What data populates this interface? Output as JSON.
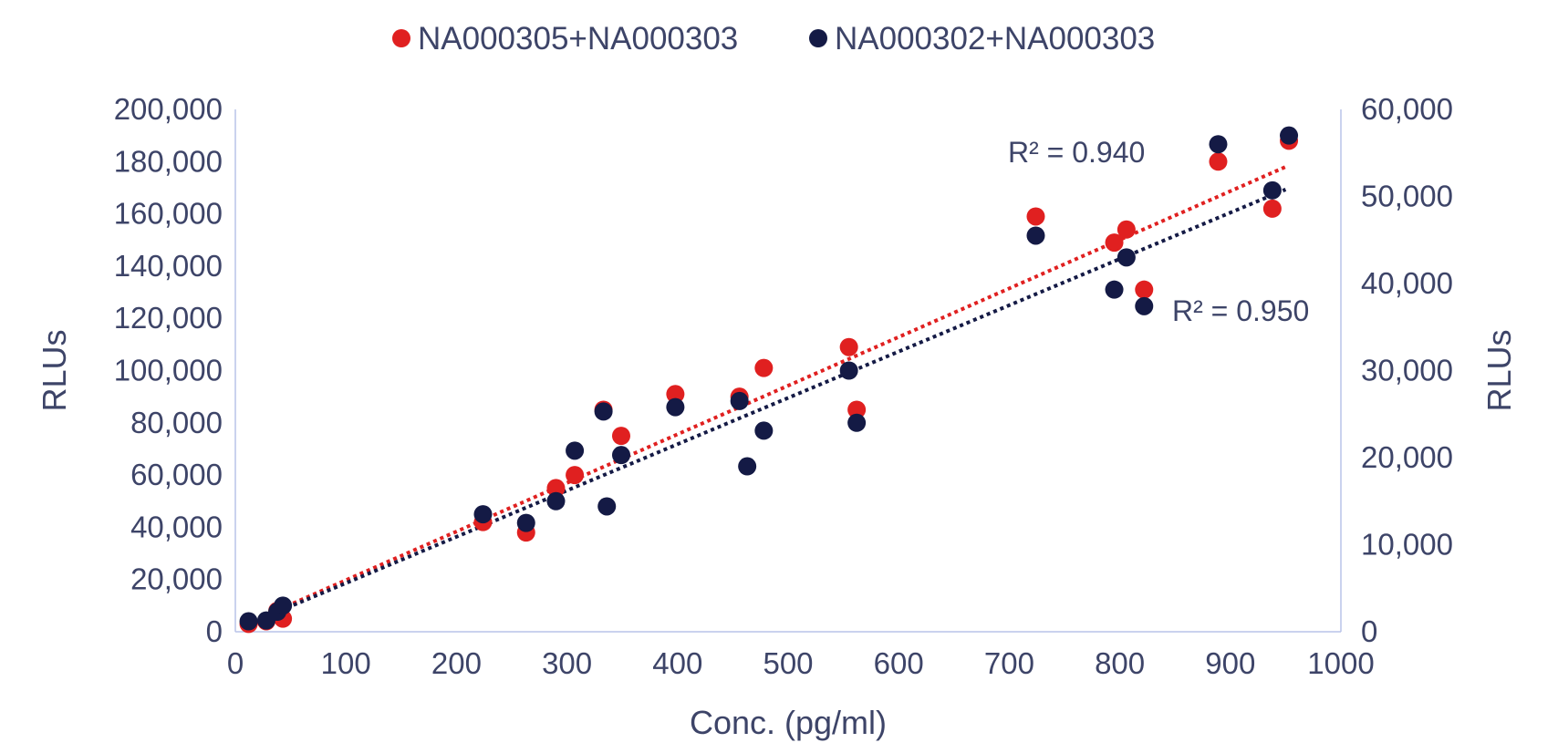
{
  "chart_data": {
    "type": "scatter",
    "title": "",
    "xlabel": "Conc. (pg/ml)",
    "ylabel": "RLUs",
    "y2label": "RLUs",
    "xlim": [
      0,
      1000
    ],
    "ylim": [
      0,
      200000
    ],
    "y2lim": [
      0,
      60000
    ],
    "grid": false,
    "legend_position": "top-center",
    "x_ticks": [
      "0",
      "100",
      "200",
      "300",
      "400",
      "500",
      "600",
      "700",
      "800",
      "900",
      "1000"
    ],
    "y_ticks": [
      "0",
      "20,000",
      "40,000",
      "60,000",
      "80,000",
      "100,000",
      "120,000",
      "140,000",
      "160,000",
      "180,000",
      "200,000"
    ],
    "y2_ticks": [
      "0",
      "10,000",
      "20,000",
      "30,000",
      "40,000",
      "50,000",
      "60,000"
    ],
    "series": [
      {
        "name": "NA000305+NA000303",
        "axis": "left",
        "color": "#e02020",
        "trendline": {
          "x0": 10,
          "y0": 3000,
          "x1": 950,
          "y1": 178000,
          "r2_label": "R² = 0.940"
        },
        "x": [
          12,
          28,
          38,
          43,
          224,
          263,
          290,
          307,
          333,
          349,
          398,
          456,
          478,
          555,
          562,
          724,
          795,
          806,
          822,
          889,
          938,
          953
        ],
        "y": [
          3000,
          4000,
          8000,
          5000,
          42000,
          38000,
          55000,
          60000,
          85000,
          75000,
          91000,
          90000,
          101000,
          109000,
          85000,
          159000,
          149000,
          154000,
          131000,
          180000,
          162000,
          188000
        ]
      },
      {
        "name": "NA000302+NA000303",
        "axis": "right",
        "color": "#141a45",
        "trendline": {
          "x0": 10,
          "y0": 800,
          "x1": 950,
          "y1": 50800,
          "r2_label": "R² = 0.950"
        },
        "x": [
          12,
          28,
          38,
          43,
          224,
          263,
          290,
          307,
          333,
          336,
          349,
          398,
          456,
          463,
          478,
          555,
          562,
          724,
          795,
          806,
          822,
          889,
          938,
          953
        ],
        "y": [
          1200,
          1300,
          2300,
          3000,
          13500,
          12500,
          15000,
          20800,
          25300,
          14400,
          20300,
          25800,
          26500,
          19000,
          23100,
          30000,
          24000,
          45500,
          39300,
          43000,
          37400,
          56000,
          50700,
          57000
        ]
      }
    ]
  }
}
